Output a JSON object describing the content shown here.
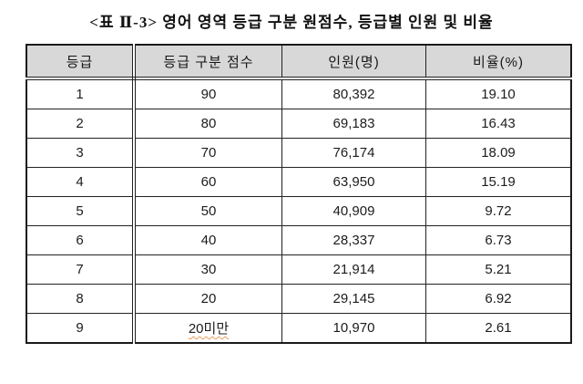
{
  "title": "<표 Ⅱ-3> 영어 영역 등급 구분 원점수, 등급별 인원 및 비율",
  "colors": {
    "header_bg": "#d8d8d8",
    "border": "#222222",
    "spellcheck_underline": "#e89a5a"
  },
  "table": {
    "headers": [
      "등급",
      "등급 구분 점수",
      "인원(명)",
      "비율(%)"
    ],
    "rows": [
      {
        "grade": "1",
        "score": "90",
        "count": "80,392",
        "ratio": "19.10"
      },
      {
        "grade": "2",
        "score": "80",
        "count": "69,183",
        "ratio": "16.43"
      },
      {
        "grade": "3",
        "score": "70",
        "count": "76,174",
        "ratio": "18.09"
      },
      {
        "grade": "4",
        "score": "60",
        "count": "63,950",
        "ratio": "15.19"
      },
      {
        "grade": "5",
        "score": "50",
        "count": "40,909",
        "ratio": "9.72"
      },
      {
        "grade": "6",
        "score": "40",
        "count": "28,337",
        "ratio": "6.73"
      },
      {
        "grade": "7",
        "score": "30",
        "count": "21,914",
        "ratio": "5.21"
      },
      {
        "grade": "8",
        "score": "20",
        "count": "29,145",
        "ratio": "6.92"
      },
      {
        "grade": "9",
        "score": "20미만",
        "count": "10,970",
        "ratio": "2.61",
        "score_misspelled": true
      }
    ]
  }
}
